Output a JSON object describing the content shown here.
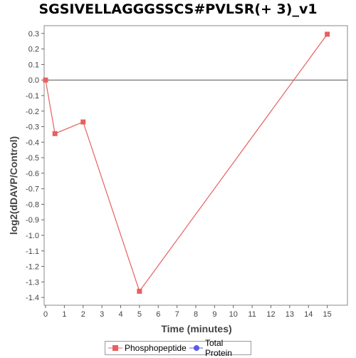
{
  "chart_data": {
    "type": "line",
    "title": "SGSIVELLAGGGSSCS#PVLSR(+ 3)_v1",
    "xlabel": "Time (minutes)",
    "ylabel": "log2(dDAVP/Control)",
    "xlim": [
      0,
      16
    ],
    "ylim": [
      -1.45,
      0.35
    ],
    "x_ticks": [
      0,
      1,
      2,
      3,
      4,
      5,
      6,
      7,
      8,
      9,
      10,
      11,
      12,
      13,
      14,
      15
    ],
    "y_ticks": [
      0.3,
      0.2,
      0.1,
      0.0,
      -0.1,
      -0.2,
      -0.3,
      -0.4,
      -0.5,
      -0.6,
      -0.7,
      -0.8,
      -0.9,
      -1.0,
      -1.1,
      -1.2,
      -1.3,
      -1.4
    ],
    "y_tick_labels": [
      "0.3",
      "0.2",
      "0.1",
      "0.0",
      "-0.1",
      "-0.2",
      "-0.3",
      "-0.4",
      "-0.5",
      "-0.6",
      "-0.7",
      "-0.8",
      "-0.9",
      "-1.0",
      "-1.1",
      "-1.2",
      "-1.3",
      "-1.4"
    ],
    "zero_line": true,
    "grid": false,
    "legend_position": "bottom",
    "series": [
      {
        "name": "Phosphopeptide",
        "color": "#e8605f",
        "marker": "square",
        "x": [
          0,
          0.5,
          2,
          5,
          15
        ],
        "y": [
          0.0,
          -0.345,
          -0.27,
          -1.36,
          0.295
        ]
      },
      {
        "name": "Total Protein",
        "color": "#5a5ae8",
        "marker": "circle",
        "x": [],
        "y": []
      }
    ]
  }
}
